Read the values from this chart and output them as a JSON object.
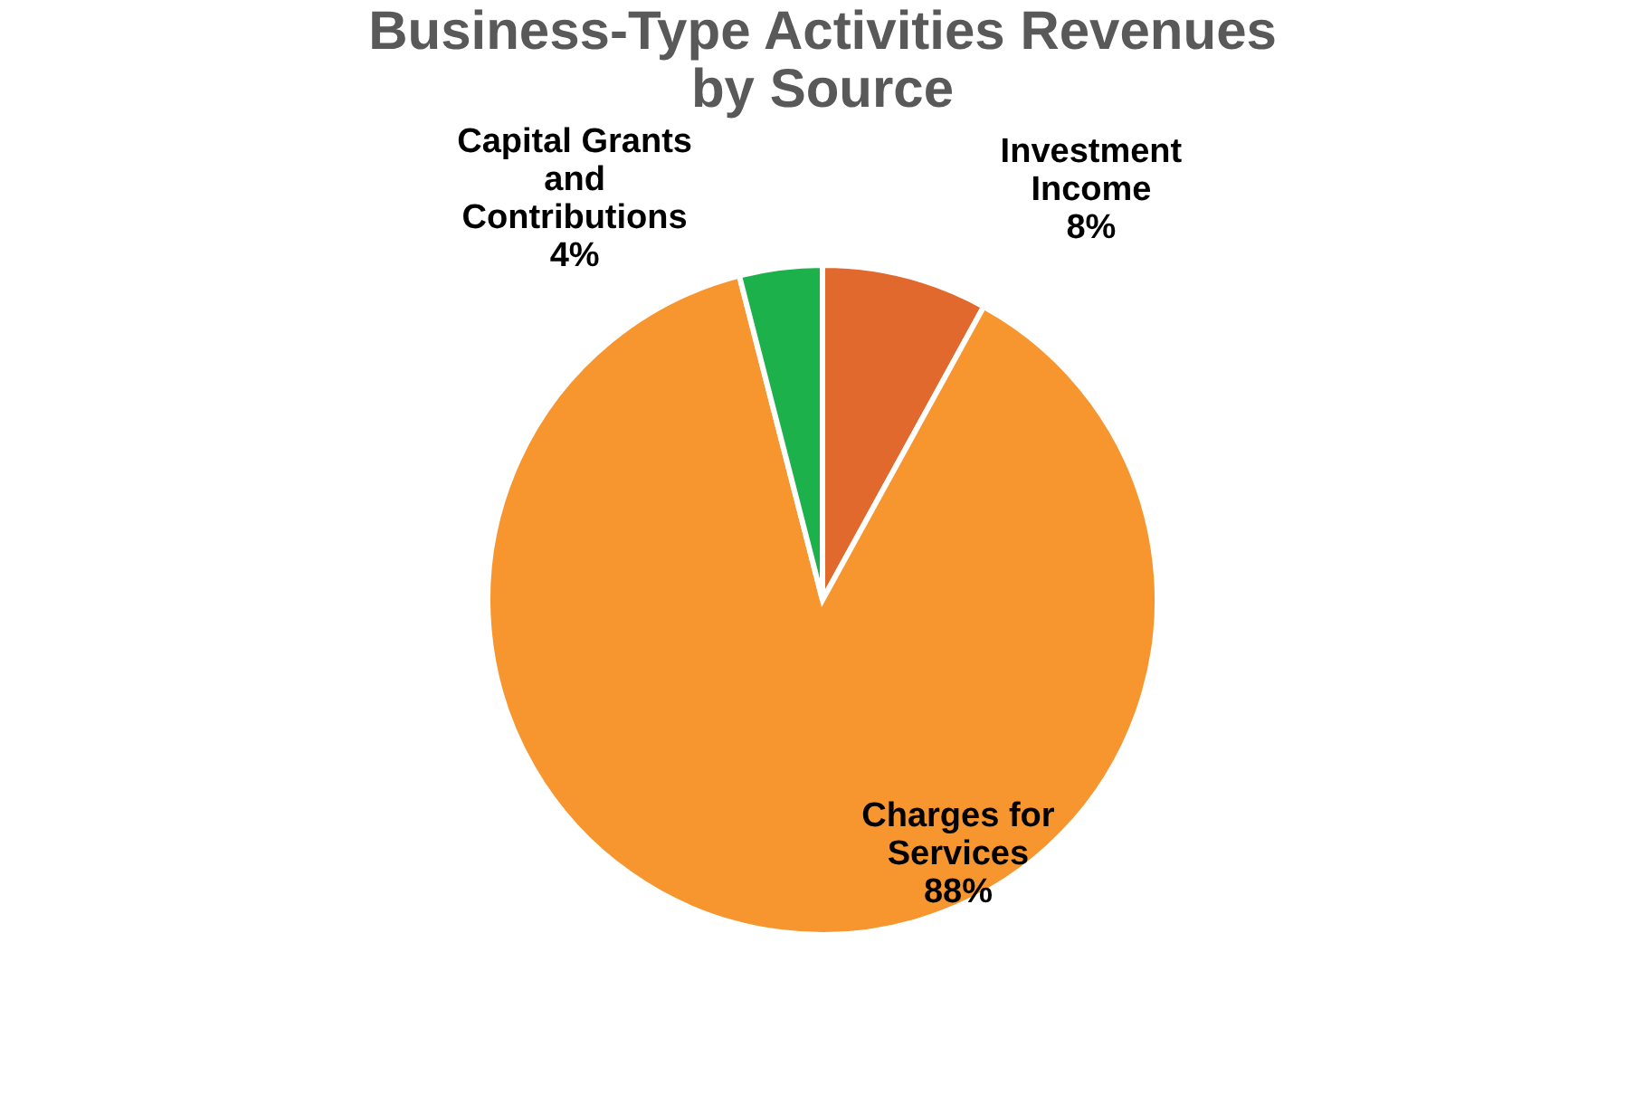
{
  "chart_data": {
    "type": "pie",
    "title": "Business-Type Activities Revenues\nby Source",
    "categories": [
      "Investment Income",
      "Charges for Services",
      "Capital Grants and Contributions"
    ],
    "values": [
      8,
      88,
      4
    ],
    "colors": [
      "#e2692e",
      "#f7962f",
      "#1db14b"
    ],
    "value_labels": [
      "8%",
      "88%",
      "4%"
    ],
    "legend": false
  }
}
